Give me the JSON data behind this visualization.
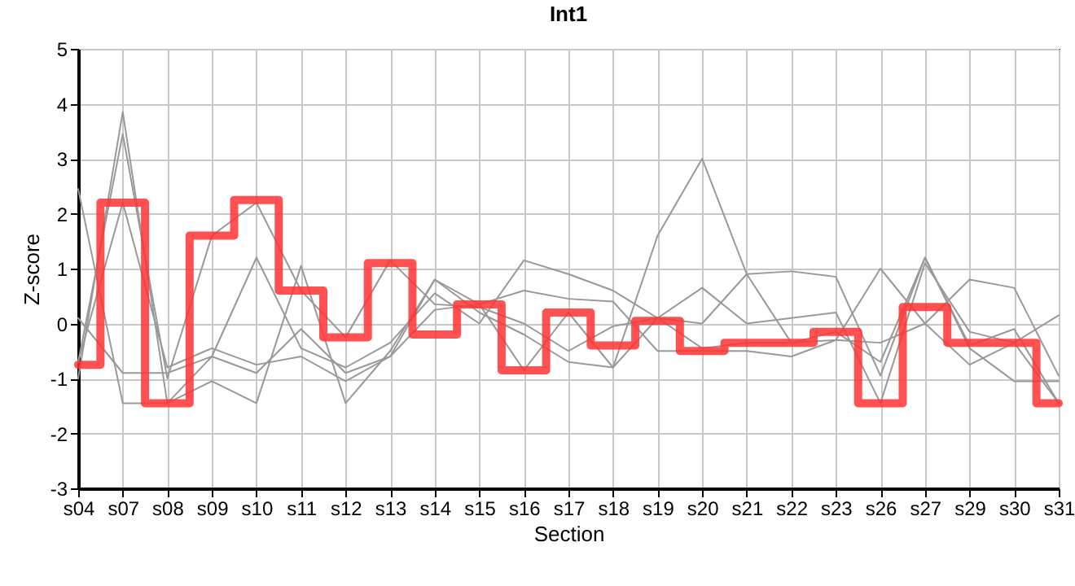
{
  "chart_data": {
    "type": "line",
    "title": "Int1",
    "xlabel": "Section",
    "ylabel": "Z-score",
    "categories": [
      "s04",
      "s07",
      "s08",
      "s09",
      "s10",
      "s11",
      "s12",
      "s13",
      "s14",
      "s15",
      "s16",
      "s17",
      "s18",
      "s19",
      "s20",
      "s21",
      "s22",
      "s23",
      "s26",
      "s27",
      "s29",
      "s30",
      "s31"
    ],
    "ylim": [
      -3,
      5
    ],
    "yticks": [
      -3,
      -2,
      -1,
      0,
      1,
      2,
      3,
      4,
      5
    ],
    "grid": true,
    "line_style": "solid",
    "series": [
      {
        "color": "#999999",
        "values": [
          -1.0,
          3.85,
          -1.45,
          -1.05,
          -1.45,
          1.05,
          -1.45,
          -0.5,
          0.8,
          0.35,
          -0.85,
          0.2,
          -0.8,
          1.6,
          3.0,
          0.9,
          0.95,
          0.85,
          -0.95,
          1.2,
          -0.4,
          -0.1,
          -1.45
        ]
      },
      {
        "color": "#999999",
        "values": [
          -0.7,
          3.45,
          -1.0,
          1.6,
          2.2,
          0.6,
          -0.25,
          1.15,
          0.35,
          0.3,
          0.0,
          -0.5,
          -0.05,
          0.1,
          0.65,
          0.0,
          0.1,
          0.2,
          -1.45,
          1.1,
          -0.15,
          -0.35,
          -1.45
        ]
      },
      {
        "color": "#999999",
        "values": [
          0.1,
          -0.9,
          -0.9,
          -0.6,
          1.2,
          -0.45,
          -0.8,
          -0.35,
          0.55,
          0.0,
          1.15,
          0.9,
          0.6,
          0.1,
          0.0,
          0.9,
          -0.35,
          -0.3,
          1.0,
          0.0,
          0.8,
          0.65,
          -0.95
        ]
      },
      {
        "color": "#999999",
        "values": [
          2.45,
          -1.45,
          -1.45,
          -0.6,
          -0.9,
          -0.1,
          -0.9,
          -0.6,
          0.25,
          0.35,
          0.6,
          0.45,
          0.4,
          -0.5,
          -0.5,
          -0.5,
          -0.6,
          -0.3,
          -0.35,
          0.0,
          -0.75,
          -0.35,
          0.15
        ]
      },
      {
        "color": "#999999",
        "values": [
          -0.7,
          2.2,
          -0.8,
          -0.45,
          -0.75,
          -0.6,
          -1.05,
          -0.6,
          0.8,
          0.2,
          -0.2,
          -0.7,
          -0.8,
          0.1,
          -0.45,
          -0.35,
          -0.35,
          -0.15,
          -0.7,
          1.2,
          -0.45,
          -1.05,
          -1.05
        ]
      },
      {
        "type": "step",
        "color": "#ff3333",
        "values": [
          -0.75,
          2.2,
          -1.45,
          1.6,
          2.25,
          0.6,
          -0.25,
          1.1,
          -0.2,
          0.35,
          -0.85,
          0.2,
          -0.4,
          0.05,
          -0.5,
          -0.35,
          -0.35,
          -0.15,
          -1.45,
          0.3,
          -0.35,
          -0.35,
          -1.45
        ]
      }
    ]
  }
}
